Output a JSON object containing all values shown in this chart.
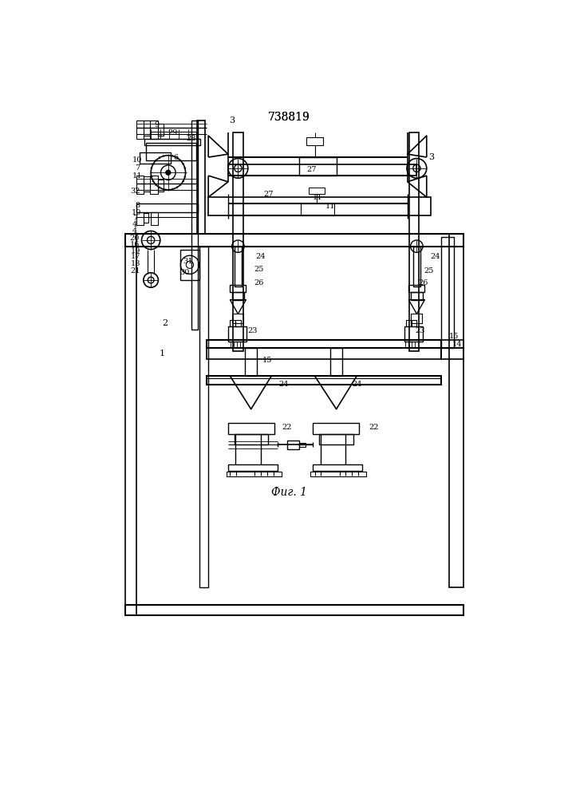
{
  "title": "738819",
  "caption": "Фиг. 1",
  "bg_color": "#ffffff",
  "line_color": "#000000",
  "title_fontsize": 10,
  "caption_fontsize": 10,
  "figsize": [
    7.07,
    10.0
  ],
  "dpi": 100
}
